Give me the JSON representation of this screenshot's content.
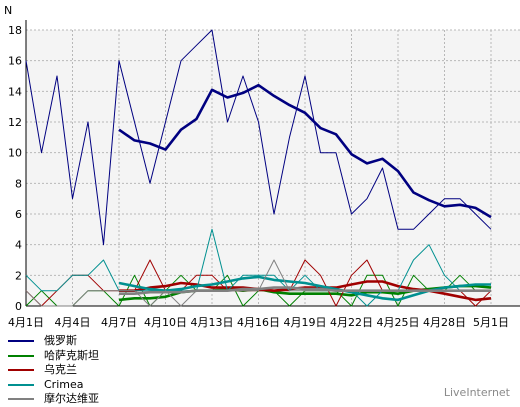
{
  "chart_data": {
    "type": "line",
    "title": "",
    "xlabel": "",
    "ylabel": "N",
    "ylim": [
      0,
      18
    ],
    "yticks": [
      0,
      2,
      4,
      6,
      8,
      10,
      12,
      14,
      16,
      18
    ],
    "x": [
      "4月1日",
      "4月2日",
      "4月3日",
      "4月4日",
      "4月5日",
      "4月6日",
      "4月7日",
      "4月8日",
      "4月9日",
      "4月10日",
      "4月11日",
      "4月12日",
      "4月13日",
      "4月14日",
      "4月15日",
      "4月16日",
      "4月17日",
      "4月18日",
      "4月19日",
      "4月20日",
      "4月21日",
      "4月22日",
      "4月23日",
      "4月24日",
      "4月25日",
      "4月26日",
      "4月27日",
      "4月28日",
      "4月29日",
      "4月30日",
      "5月1日"
    ],
    "xtick_labels": [
      "4月1日",
      "4月4日",
      "4月7日",
      "4月10日",
      "4月13日",
      "4月16日",
      "4月19日",
      "4月22日",
      "4月25日",
      "4月28日",
      "5月1日"
    ],
    "xtick_index": [
      0,
      3,
      6,
      9,
      12,
      15,
      18,
      21,
      24,
      27,
      30
    ],
    "grid": true,
    "legend_position": "bottom-left",
    "series": [
      {
        "name": "俄罗斯",
        "color": "#000080",
        "values": [
          16,
          10,
          15,
          7,
          12,
          4,
          16,
          12,
          8,
          12,
          16,
          17,
          18,
          12,
          15,
          12,
          6,
          11,
          15,
          10,
          10,
          6,
          7,
          9,
          5,
          5,
          6,
          7,
          7,
          6,
          5
        ]
      },
      {
        "name": "俄罗斯",
        "color": "#000080",
        "bold": true,
        "values": [
          null,
          null,
          null,
          null,
          null,
          null,
          11.5,
          10.8,
          10.6,
          10.2,
          11.5,
          12.2,
          14.1,
          13.6,
          13.9,
          14.4,
          13.7,
          13.1,
          12.6,
          11.6,
          11.2,
          9.9,
          9.3,
          9.6,
          8.8,
          7.4,
          6.9,
          6.5,
          6.6,
          6.4,
          5.8
        ]
      },
      {
        "name": "哈萨克斯坦",
        "color": "#008000",
        "values": [
          0,
          1,
          0,
          0,
          1,
          1,
          0,
          2,
          0,
          1,
          2,
          1,
          1,
          2,
          0,
          1,
          1,
          0,
          1,
          1,
          1,
          0,
          2,
          2,
          0,
          2,
          1,
          1,
          2,
          1,
          1
        ]
      },
      {
        "name": "哈萨克斯坦",
        "color": "#008000",
        "bold": true,
        "values": [
          null,
          null,
          null,
          null,
          null,
          null,
          0.4,
          0.5,
          0.5,
          0.6,
          0.9,
          1.0,
          1.0,
          1.1,
          1.0,
          1.1,
          0.9,
          0.8,
          0.8,
          0.8,
          0.8,
          0.7,
          0.9,
          0.9,
          0.8,
          1.0,
          1.1,
          1.2,
          1.3,
          1.3,
          1.2
        ]
      },
      {
        "name": "乌克兰",
        "color": "#a00000",
        "values": [
          1,
          0,
          1,
          2,
          2,
          1,
          1,
          1,
          3,
          1,
          1,
          2,
          2,
          1,
          1,
          1,
          1,
          1,
          3,
          2,
          0,
          2,
          3,
          1,
          1,
          1,
          1,
          1,
          1,
          0,
          1
        ]
      },
      {
        "name": "乌克兰",
        "color": "#a00000",
        "bold": true,
        "values": [
          null,
          null,
          null,
          null,
          null,
          null,
          1.0,
          1.0,
          1.2,
          1.3,
          1.5,
          1.4,
          1.2,
          1.2,
          1.2,
          1.1,
          1.0,
          1.1,
          1.2,
          1.2,
          1.2,
          1.4,
          1.6,
          1.6,
          1.3,
          1.1,
          1.0,
          0.8,
          0.6,
          0.4,
          0.5
        ]
      },
      {
        "name": "Crimea",
        "color": "#009090",
        "values": [
          2,
          1,
          1,
          2,
          2,
          3,
          1,
          1,
          1,
          1,
          1,
          1,
          5,
          1,
          2,
          2,
          2,
          1,
          2,
          1,
          1,
          1,
          0,
          1,
          1,
          3,
          4,
          2,
          1,
          1,
          1
        ]
      },
      {
        "name": "Crimea",
        "color": "#009090",
        "bold": true,
        "values": [
          null,
          null,
          null,
          null,
          null,
          null,
          1.5,
          1.3,
          1.1,
          1.0,
          1.1,
          1.3,
          1.4,
          1.6,
          1.8,
          1.9,
          1.7,
          1.6,
          1.5,
          1.3,
          1.1,
          0.9,
          0.7,
          0.5,
          0.4,
          0.7,
          1.0,
          1.2,
          1.3,
          1.4,
          1.4
        ]
      },
      {
        "name": "摩尔达维亚",
        "color": "#808080",
        "values": [
          1,
          0,
          0,
          0,
          1,
          1,
          1,
          1,
          0,
          1,
          0,
          1,
          1,
          1,
          1,
          1,
          3,
          1,
          1,
          1,
          1,
          1,
          1,
          1,
          1,
          1,
          1,
          1,
          1,
          1,
          1
        ]
      },
      {
        "name": "摩尔达维亚",
        "color": "#808080",
        "bold": true,
        "values": [
          null,
          null,
          null,
          null,
          null,
          null,
          0.8,
          0.8,
          0.9,
          0.9,
          0.9,
          1.0,
          1.0,
          1.0,
          1.1,
          1.1,
          1.2,
          1.2,
          1.1,
          1.1,
          1.0,
          1.0,
          1.0,
          1.0,
          1.0,
          1.0,
          1.0,
          1.0,
          1.0,
          1.0,
          1.0
        ]
      }
    ]
  },
  "legend": [
    {
      "name": "俄罗斯",
      "color": "#000080"
    },
    {
      "name": "哈萨克斯坦",
      "color": "#008000"
    },
    {
      "name": "乌克兰",
      "color": "#a00000"
    },
    {
      "name": "Crimea",
      "color": "#009090"
    },
    {
      "name": "摩尔达维亚",
      "color": "#808080"
    }
  ],
  "watermark": "LiveInternet"
}
